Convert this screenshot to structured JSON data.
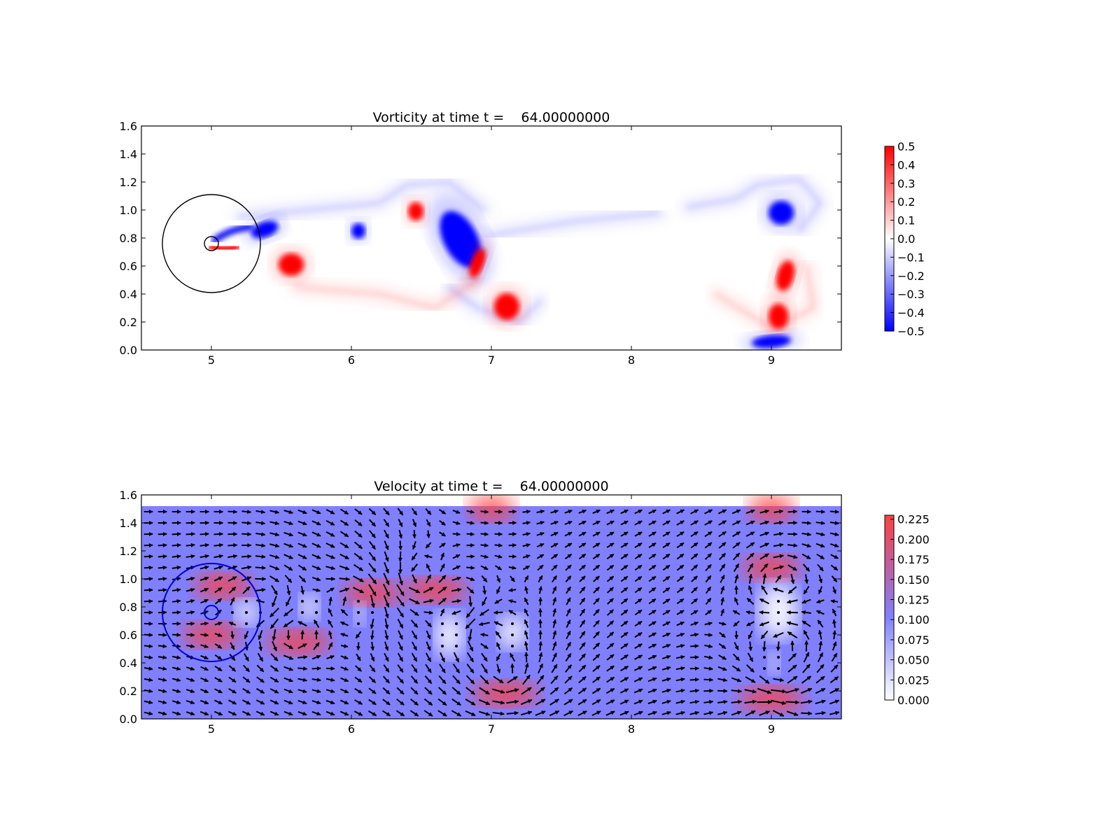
{
  "chart_data": [
    {
      "type": "heatmap",
      "title": "Vorticity at time t =    64.00000000",
      "xlabel": "",
      "ylabel": "",
      "xlim": [
        4.5,
        9.5
      ],
      "ylim": [
        0.0,
        1.6
      ],
      "xticks": [
        "5",
        "6",
        "7",
        "8",
        "9"
      ],
      "yticks": [
        "0.0",
        "0.2",
        "0.4",
        "0.6",
        "0.8",
        "1.0",
        "1.2",
        "1.4",
        "1.6"
      ],
      "grid": false,
      "colormap": "bwr",
      "colors": {
        "negative": "#0000ff",
        "zero": "#ffffff",
        "positive": "#ff0000"
      },
      "colorbar": {
        "range": [
          -0.5,
          0.5
        ],
        "ticks": [
          "0.5",
          "0.4",
          "0.3",
          "0.2",
          "0.1",
          "0.0",
          "−0.1",
          "−0.2",
          "−0.3",
          "−0.4",
          "−0.5"
        ]
      },
      "vortices": [
        {
          "x": 5.38,
          "y": 0.86,
          "value": -0.5
        },
        {
          "x": 5.57,
          "y": 0.61,
          "value": 0.5
        },
        {
          "x": 6.05,
          "y": 0.85,
          "value": -0.5
        },
        {
          "x": 6.46,
          "y": 0.99,
          "value": 0.5
        },
        {
          "x": 6.78,
          "y": 0.79,
          "value": -0.5
        },
        {
          "x": 6.9,
          "y": 0.62,
          "value": 0.5
        },
        {
          "x": 7.11,
          "y": 0.31,
          "value": 0.5
        },
        {
          "x": 9.07,
          "y": 0.98,
          "value": -0.5
        },
        {
          "x": 9.1,
          "y": 0.53,
          "value": 0.5
        },
        {
          "x": 9.05,
          "y": 0.24,
          "value": 0.5
        },
        {
          "x": 9.0,
          "y": 0.06,
          "value": -0.5
        }
      ],
      "circles": [
        {
          "cx": 5.0,
          "cy": 0.76,
          "r": 0.35,
          "color": "#000000"
        },
        {
          "cx": 5.0,
          "cy": 0.76,
          "r": 0.05,
          "color": "#000000"
        }
      ]
    },
    {
      "type": "heatmap",
      "title": "Velocity at time t =    64.00000000",
      "xlabel": "",
      "ylabel": "",
      "xlim": [
        4.5,
        9.5
      ],
      "ylim": [
        0.0,
        1.6
      ],
      "field_ylim": [
        0.0,
        1.52
      ],
      "xticks": [
        "5",
        "6",
        "7",
        "8",
        "9"
      ],
      "yticks": [
        "0.0",
        "0.2",
        "0.4",
        "0.6",
        "0.8",
        "1.0",
        "1.2",
        "1.4",
        "1.6"
      ],
      "grid": false,
      "colormap": "bwr",
      "colors": {
        "low": "#ffffff",
        "mid": "#8080ff",
        "high": "#ff4040",
        "arrow": "#000000"
      },
      "colorbar": {
        "range": [
          0.0,
          0.23
        ],
        "ticks": [
          "0.225",
          "0.200",
          "0.175",
          "0.150",
          "0.125",
          "0.100",
          "0.075",
          "0.050",
          "0.025",
          "0.000"
        ]
      },
      "background_speed": 0.1,
      "fast_regions": [
        {
          "x": 5.08,
          "y": 0.95,
          "speed": 0.2
        },
        {
          "x": 5.0,
          "y": 0.6,
          "speed": 0.2
        },
        {
          "x": 5.62,
          "y": 0.55,
          "speed": 0.22
        },
        {
          "x": 6.15,
          "y": 0.9,
          "speed": 0.2
        },
        {
          "x": 6.6,
          "y": 0.92,
          "speed": 0.22
        },
        {
          "x": 7.1,
          "y": 0.18,
          "speed": 0.23
        },
        {
          "x": 9.0,
          "y": 1.08,
          "speed": 0.2
        },
        {
          "x": 9.0,
          "y": 0.14,
          "speed": 0.23
        },
        {
          "x": 7.0,
          "y": 1.5,
          "speed": 0.16
        },
        {
          "x": 9.0,
          "y": 1.5,
          "speed": 0.16
        }
      ],
      "slow_regions": [
        {
          "x": 5.25,
          "y": 0.76,
          "speed": 0.0
        },
        {
          "x": 5.7,
          "y": 0.8,
          "speed": 0.0
        },
        {
          "x": 6.06,
          "y": 0.75,
          "speed": 0.0
        },
        {
          "x": 6.7,
          "y": 0.6,
          "speed": 0.0
        },
        {
          "x": 7.15,
          "y": 0.62,
          "speed": 0.0
        },
        {
          "x": 9.05,
          "y": 0.77,
          "speed": 0.0
        },
        {
          "x": 9.02,
          "y": 0.4,
          "speed": 0.02
        }
      ],
      "circles": [
        {
          "cx": 5.0,
          "cy": 0.76,
          "r": 0.35,
          "color": "#0000cc"
        },
        {
          "cx": 5.0,
          "cy": 0.76,
          "r": 0.05,
          "color": "#0000cc"
        }
      ]
    }
  ]
}
